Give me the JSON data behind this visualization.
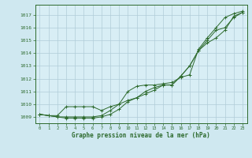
{
  "title": "Graphe pression niveau de la mer (hPa)",
  "background_color": "#cfe8f0",
  "plot_bg_color": "#d8eef5",
  "grid_color": "#b0ccd8",
  "line_color": "#2d6a2d",
  "ylim": [
    1008.5,
    1017.8
  ],
  "xlim": [
    -0.5,
    23.5
  ],
  "yticks": [
    1009,
    1010,
    1011,
    1012,
    1013,
    1014,
    1015,
    1016,
    1017
  ],
  "xticks": [
    0,
    1,
    2,
    3,
    4,
    5,
    6,
    7,
    8,
    9,
    10,
    11,
    12,
    13,
    14,
    15,
    16,
    17,
    18,
    19,
    20,
    21,
    22,
    23
  ],
  "series": [
    [
      1009.2,
      1009.1,
      1009.1,
      1009.8,
      1009.8,
      1009.8,
      1009.8,
      1009.5,
      1009.8,
      1010.0,
      1011.0,
      1011.4,
      1011.5,
      1011.5,
      1011.6,
      1011.7,
      1012.1,
      1012.3,
      1014.3,
      1015.2,
      1016.0,
      1016.8,
      1017.1,
      1017.3
    ],
    [
      1009.2,
      1009.1,
      1009.0,
      1009.0,
      1009.0,
      1009.0,
      1009.0,
      1009.1,
      1009.5,
      1010.0,
      1010.3,
      1010.5,
      1011.0,
      1011.3,
      1011.5,
      1011.5,
      1012.2,
      1013.0,
      1014.2,
      1014.8,
      1015.2,
      1015.8,
      1016.9,
      1017.2
    ],
    [
      1009.2,
      1009.1,
      1009.0,
      1008.9,
      1008.9,
      1008.9,
      1008.9,
      1009.0,
      1009.2,
      1009.6,
      1010.2,
      1010.5,
      1010.8,
      1011.1,
      1011.5,
      1011.5,
      1012.2,
      1013.0,
      1014.2,
      1015.0,
      1015.8,
      1016.0,
      1016.8,
      1017.2
    ]
  ]
}
